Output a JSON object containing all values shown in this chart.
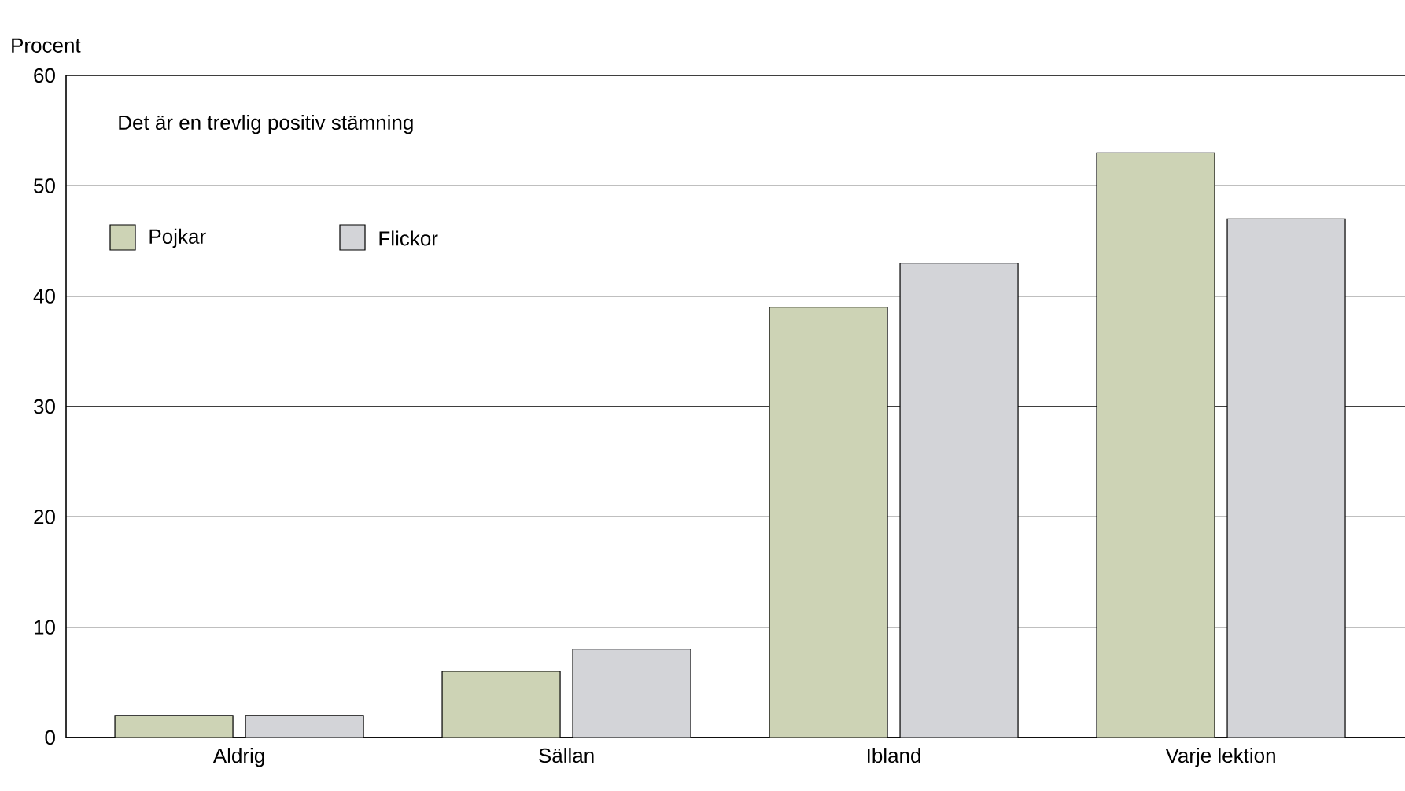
{
  "chart_data": {
    "type": "bar",
    "title": "Det är en trevlig positiv stämning",
    "ylabel": "Procent",
    "categories": [
      "Aldrig",
      "Sällan",
      "Ibland",
      "Varje lektion"
    ],
    "series": [
      {
        "name": "Pojkar",
        "color": "#cdd3b5",
        "values": [
          2,
          6,
          39,
          53
        ]
      },
      {
        "name": "Flickor",
        "color": "#d3d4d8",
        "values": [
          2,
          8,
          43,
          47
        ]
      }
    ],
    "ylim": [
      0,
      60
    ],
    "yticks": [
      0,
      10,
      20,
      30,
      40,
      50,
      60
    ],
    "grid": "y",
    "legend": "top left"
  }
}
